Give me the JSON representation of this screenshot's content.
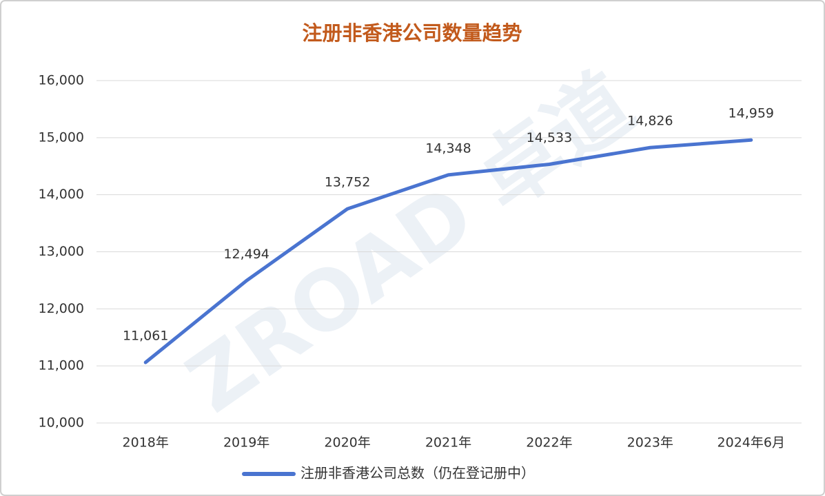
{
  "chart_data": {
    "type": "line",
    "title": "注册非香港公司数量趋势",
    "watermark": "ZROAD 卓道",
    "categories": [
      "2018年",
      "2019年",
      "2020年",
      "2021年",
      "2022年",
      "2023年",
      "2024年6月"
    ],
    "series": [
      {
        "name": "注册非香港公司总数（仍在登记册中）",
        "color": "#4a74d0",
        "values": [
          11061,
          12494,
          13752,
          14348,
          14533,
          14826,
          14959
        ],
        "value_labels": [
          "11,061",
          "12,494",
          "13,752",
          "14,348",
          "14,533",
          "14,826",
          "14,959"
        ]
      }
    ],
    "ylim": [
      10000,
      16000
    ],
    "yticks": [
      {
        "value": 10000,
        "label": "10,000"
      },
      {
        "value": 11000,
        "label": "11,000"
      },
      {
        "value": 12000,
        "label": "12,000"
      },
      {
        "value": 13000,
        "label": "13,000"
      },
      {
        "value": 14000,
        "label": "14,000"
      },
      {
        "value": 15000,
        "label": "15,000"
      },
      {
        "value": 16000,
        "label": "16,000"
      }
    ],
    "grid": true,
    "legend": "bottom"
  }
}
